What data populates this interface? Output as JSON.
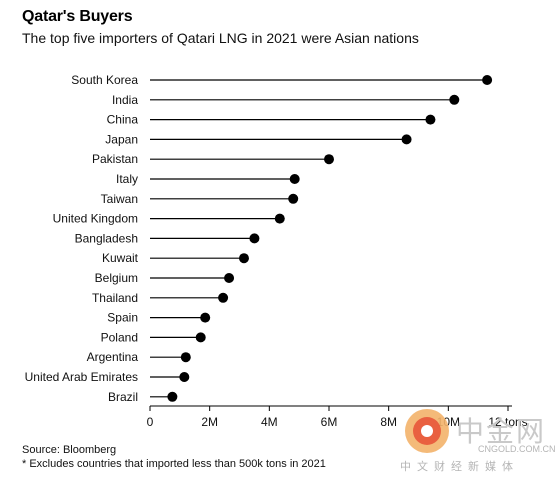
{
  "title": "Qatar's Buyers",
  "subtitle": "The top five importers of Qatari LNG in 2021 were Asian nations",
  "chart_data": {
    "type": "lollipop",
    "categories": [
      "South Korea",
      "India",
      "China",
      "Japan",
      "Pakistan",
      "Italy",
      "Taiwan",
      "United Kingdom",
      "Bangladesh",
      "Kuwait",
      "Belgium",
      "Thailand",
      "Spain",
      "Poland",
      "Argentina",
      "United Arab Emirates",
      "Brazil"
    ],
    "values": [
      11.3,
      10.2,
      9.4,
      8.6,
      6.0,
      4.85,
      4.8,
      4.35,
      3.5,
      3.15,
      2.65,
      2.45,
      1.85,
      1.7,
      1.2,
      1.15,
      0.75
    ],
    "xticks": [
      "0",
      "2M",
      "4M",
      "6M",
      "8M",
      "10M",
      "12 tons"
    ],
    "xlim": [
      0,
      12
    ],
    "color": "#000000"
  },
  "footnotes": {
    "source": "Source: Bloomberg",
    "note": "* Excludes countries that imported less than 500k tons in 2021"
  },
  "watermark": {
    "brand": "中金网",
    "url": "CNGOLD.COM.CN",
    "tagline": "中文财经新媒体"
  }
}
